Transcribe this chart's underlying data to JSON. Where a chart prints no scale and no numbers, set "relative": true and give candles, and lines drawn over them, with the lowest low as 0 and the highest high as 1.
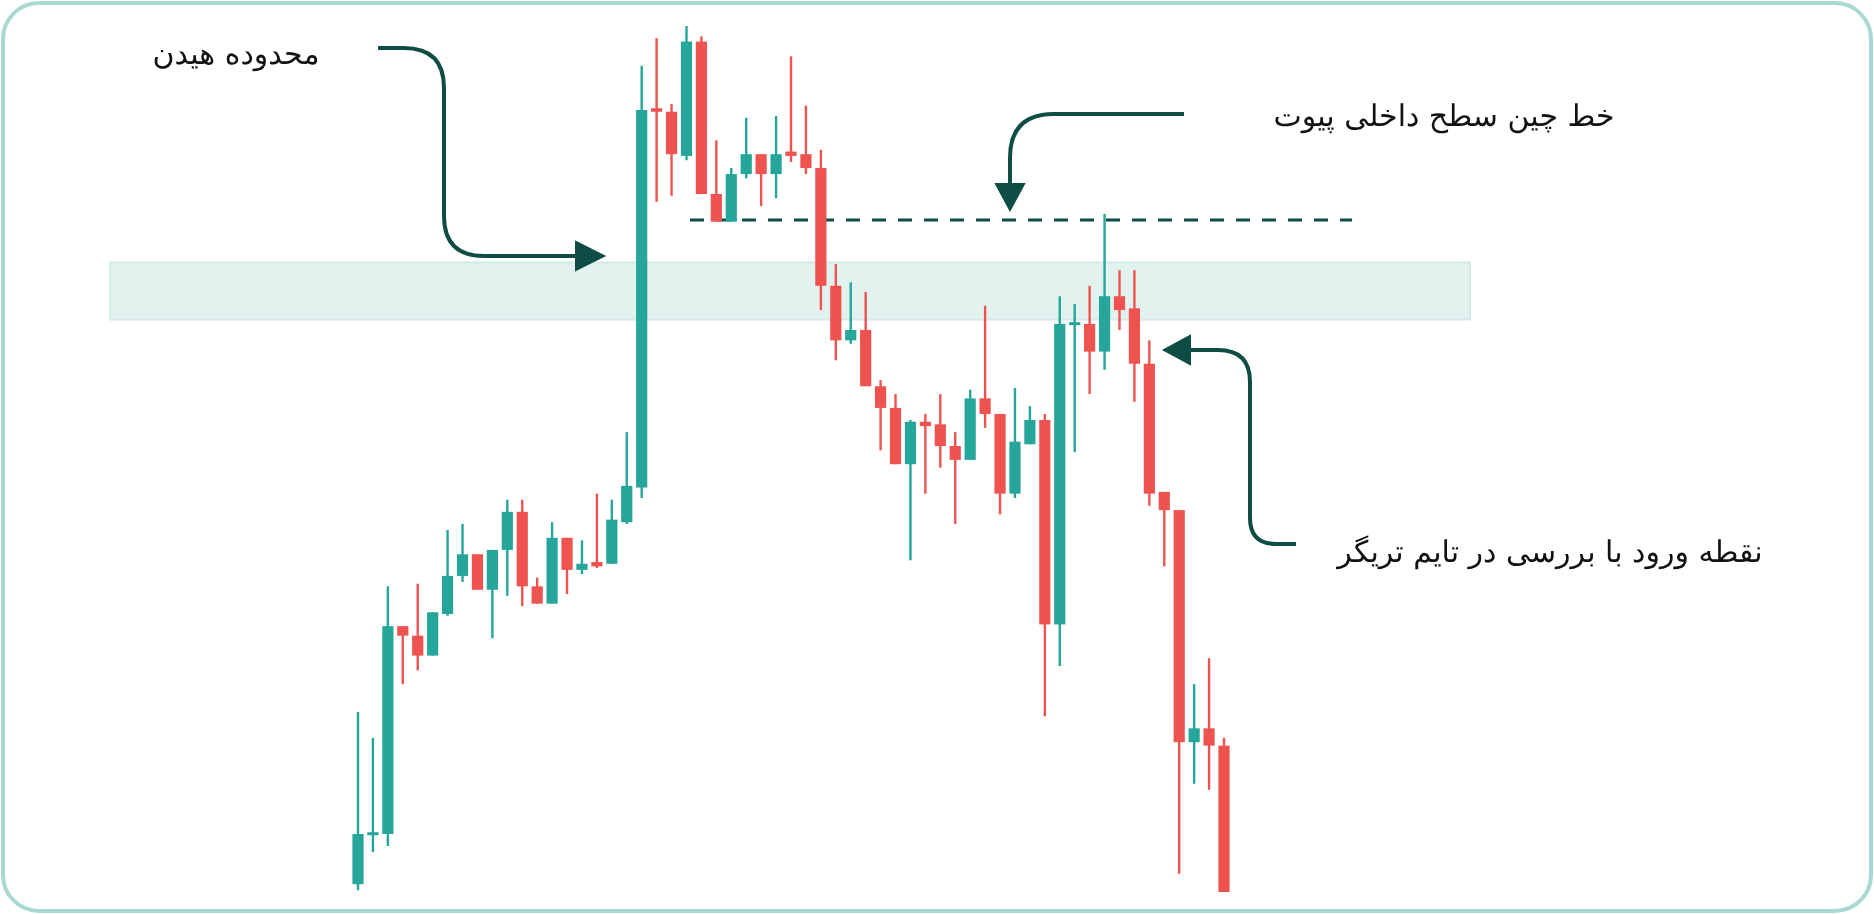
{
  "chart_data": {
    "type": "candlestick",
    "relative": true,
    "categories": [
      null,
      null,
      null,
      null,
      null,
      null,
      null,
      null,
      null,
      null,
      null,
      null,
      null,
      null,
      null,
      null,
      null,
      null,
      null,
      null,
      null,
      null,
      null,
      null,
      null,
      null,
      null,
      null,
      null,
      null,
      null,
      null,
      null,
      null,
      null,
      null,
      null,
      null,
      null,
      null,
      null,
      null,
      null,
      null,
      null,
      null,
      null,
      null,
      null,
      null,
      null,
      null,
      null,
      null,
      null,
      null,
      null,
      null,
      null
    ],
    "ohlc": [
      [
        0.009,
        0.208,
        0.002,
        0.067
      ],
      [
        0.067,
        0.178,
        0.046,
        0.069
      ],
      [
        0.067,
        0.353,
        0.053,
        0.307
      ],
      [
        0.307,
        0.307,
        0.24,
        0.296
      ],
      [
        0.296,
        0.356,
        0.256,
        0.273
      ],
      [
        0.273,
        0.323,
        0.273,
        0.323
      ],
      [
        0.321,
        0.418,
        0.319,
        0.365
      ],
      [
        0.365,
        0.425,
        0.358,
        0.39
      ],
      [
        0.39,
        0.39,
        0.349,
        0.349
      ],
      [
        0.349,
        0.395,
        0.293,
        0.395
      ],
      [
        0.395,
        0.453,
        0.342,
        0.439
      ],
      [
        0.439,
        0.453,
        0.33,
        0.353
      ],
      [
        0.353,
        0.363,
        0.333,
        0.333
      ],
      [
        0.333,
        0.427,
        0.333,
        0.409
      ],
      [
        0.409,
        0.409,
        0.344,
        0.372
      ],
      [
        0.372,
        0.406,
        0.367,
        0.379
      ],
      [
        0.381,
        0.46,
        0.374,
        0.376
      ],
      [
        0.379,
        0.453,
        0.379,
        0.43
      ],
      [
        0.427,
        0.531,
        0.425,
        0.469
      ],
      [
        0.467,
        0.954,
        0.455,
        0.903
      ],
      [
        0.905,
        0.986,
        0.797,
        0.901
      ],
      [
        0.901,
        0.91,
        0.804,
        0.852
      ],
      [
        0.85,
        1.0,
        0.845,
        0.982
      ],
      [
        0.982,
        0.988,
        0.806,
        0.806
      ],
      [
        0.806,
        0.868,
        0.774,
        0.774
      ],
      [
        0.774,
        0.836,
        0.774,
        0.829
      ],
      [
        0.829,
        0.894,
        0.824,
        0.852
      ],
      [
        0.852,
        0.852,
        0.792,
        0.829
      ],
      [
        0.829,
        0.896,
        0.801,
        0.852
      ],
      [
        0.855,
        0.965,
        0.843,
        0.85
      ],
      [
        0.852,
        0.908,
        0.829,
        0.836
      ],
      [
        0.836,
        0.857,
        0.672,
        0.7
      ],
      [
        0.7,
        0.725,
        0.614,
        0.637
      ],
      [
        0.637,
        0.704,
        0.633,
        0.649
      ],
      [
        0.649,
        0.693,
        0.584,
        0.584
      ],
      [
        0.584,
        0.591,
        0.51,
        0.559
      ],
      [
        0.559,
        0.575,
        0.494,
        0.494
      ],
      [
        0.494,
        0.545,
        0.383,
        0.543
      ],
      [
        0.543,
        0.552,
        0.46,
        0.538
      ],
      [
        0.54,
        0.575,
        0.49,
        0.515
      ],
      [
        0.515,
        0.531,
        0.425,
        0.499
      ],
      [
        0.499,
        0.58,
        0.499,
        0.57
      ],
      [
        0.57,
        0.677,
        0.536,
        0.552
      ],
      [
        0.552,
        0.552,
        0.436,
        0.46
      ],
      [
        0.46,
        0.582,
        0.455,
        0.52
      ],
      [
        0.517,
        0.561,
        0.517,
        0.545
      ],
      [
        0.545,
        0.552,
        0.203,
        0.309
      ],
      [
        0.309,
        0.688,
        0.261,
        0.656
      ],
      [
        0.656,
        0.679,
        0.508,
        0.658
      ],
      [
        0.656,
        0.7,
        0.575,
        0.624
      ],
      [
        0.624,
        0.783,
        0.603,
        0.688
      ],
      [
        0.688,
        0.718,
        0.649,
        0.672
      ],
      [
        0.674,
        0.718,
        0.566,
        0.61
      ],
      [
        0.61,
        0.637,
        0.446,
        0.46
      ],
      [
        0.462,
        0.462,
        0.376,
        0.441
      ],
      [
        0.441,
        0.441,
        0.021,
        0.173
      ],
      [
        0.173,
        0.24,
        0.125,
        0.189
      ],
      [
        0.189,
        0.27,
        0.118,
        0.169
      ],
      [
        0.169,
        0.178,
        0.0,
        0.0
      ]
    ],
    "colors": [
      "#26a69a",
      "#26a69a",
      "#26a69a",
      "#ef5350",
      "#ef5350",
      "#26a69a",
      "#26a69a",
      "#26a69a",
      "#ef5350",
      "#26a69a",
      "#26a69a",
      "#ef5350",
      "#ef5350",
      "#26a69a",
      "#ef5350",
      "#26a69a",
      "#ef5350",
      "#26a69a",
      "#26a69a",
      "#26a69a",
      "#ef5350",
      "#ef5350",
      "#26a69a",
      "#ef5350",
      "#ef5350",
      "#26a69a",
      "#26a69a",
      "#ef5350",
      "#26a69a",
      "#ef5350",
      "#ef5350",
      "#ef5350",
      "#ef5350",
      "#26a69a",
      "#ef5350",
      "#ef5350",
      "#ef5350",
      "#26a69a",
      "#ef5350",
      "#ef5350",
      "#ef5350",
      "#26a69a",
      "#ef5350",
      "#ef5350",
      "#26a69a",
      "#26a69a",
      "#ef5350",
      "#26a69a",
      "#26a69a",
      "#ef5350",
      "#26a69a",
      "#ef5350",
      "#ef5350",
      "#ef5350",
      "#ef5350",
      "#ef5350",
      "#26a69a",
      "#ef5350",
      "#ef5350"
    ],
    "bands": [
      {
        "axis": "y",
        "from": 0.661,
        "to": 0.727,
        "color": "#d3ebe7"
      }
    ],
    "ref_lines": [
      {
        "axis": "y",
        "value": 0.776,
        "color": "#0e4d45",
        "line_style": "dashed"
      }
    ],
    "annotations": [
      "محدوده هیدن",
      "خط چین سطح داخلی پیوت",
      "نقطه ورود با بررسی در تایم تریگر"
    ]
  }
}
